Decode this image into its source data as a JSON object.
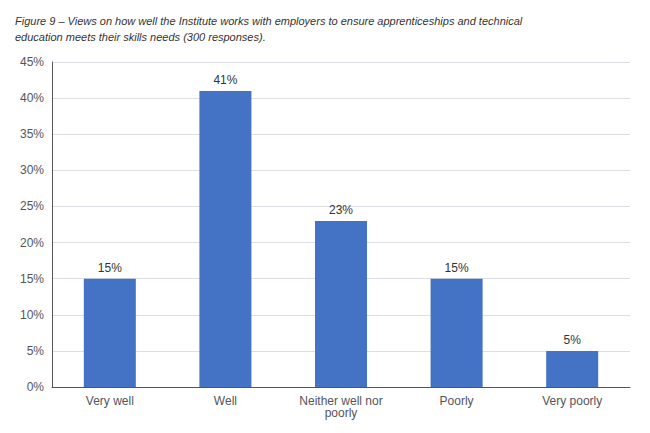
{
  "chart_data": {
    "type": "bar",
    "title": "Figure 9 – Views on how well the Institute works with employers to ensure apprenticeships and technical\neducation meets their skills needs (300 responses).",
    "categories": [
      "Very well",
      "Well",
      "Neither well nor\npoorly",
      "Poorly",
      "Very poorly"
    ],
    "values": [
      15,
      41,
      23,
      15,
      5
    ],
    "value_labels": [
      "15%",
      "41%",
      "23%",
      "15%",
      "5%"
    ],
    "data_labels": true,
    "color": "#4472c4",
    "ylim": [
      0,
      45
    ],
    "yticks": [
      {
        "value": 0,
        "label": "0%"
      },
      {
        "value": 5,
        "label": "5%"
      },
      {
        "value": 10,
        "label": "10%"
      },
      {
        "value": 15,
        "label": "15%"
      },
      {
        "value": 20,
        "label": "20%"
      },
      {
        "value": 25,
        "label": "25%"
      },
      {
        "value": 30,
        "label": "30%"
      },
      {
        "value": 35,
        "label": "35%"
      },
      {
        "value": 40,
        "label": "40%"
      },
      {
        "value": 45,
        "label": "45%"
      }
    ],
    "grid": true
  }
}
